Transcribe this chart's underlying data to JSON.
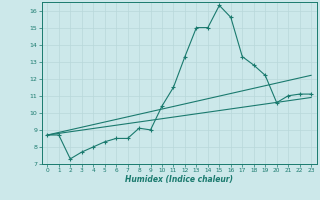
{
  "xlabel": "Humidex (Indice chaleur)",
  "bg_color": "#cce8ea",
  "line_color": "#1a7a6e",
  "grid_color": "#b8d8da",
  "xlim": [
    -0.5,
    23.5
  ],
  "ylim": [
    7,
    16.5
  ],
  "x_ticks": [
    0,
    1,
    2,
    3,
    4,
    5,
    6,
    7,
    8,
    9,
    10,
    11,
    12,
    13,
    14,
    15,
    16,
    17,
    18,
    19,
    20,
    21,
    22,
    23
  ],
  "y_ticks": [
    7,
    8,
    9,
    10,
    11,
    12,
    13,
    14,
    15,
    16
  ],
  "series1_x": [
    0,
    1,
    2,
    3,
    4,
    5,
    6,
    7,
    8,
    9,
    10,
    11,
    12,
    13,
    14,
    15,
    16,
    17,
    18,
    19,
    20,
    21,
    22,
    23
  ],
  "series1_y": [
    8.7,
    8.7,
    7.3,
    7.7,
    8.0,
    8.3,
    8.5,
    8.5,
    9.1,
    9.0,
    10.4,
    11.5,
    13.3,
    15.0,
    15.0,
    16.3,
    15.6,
    13.3,
    12.8,
    12.2,
    10.6,
    11.0,
    11.1,
    11.1
  ],
  "series2_x": [
    0,
    23
  ],
  "series2_y": [
    8.7,
    10.9
  ],
  "series3_x": [
    0,
    23
  ],
  "series3_y": [
    8.7,
    12.2
  ]
}
